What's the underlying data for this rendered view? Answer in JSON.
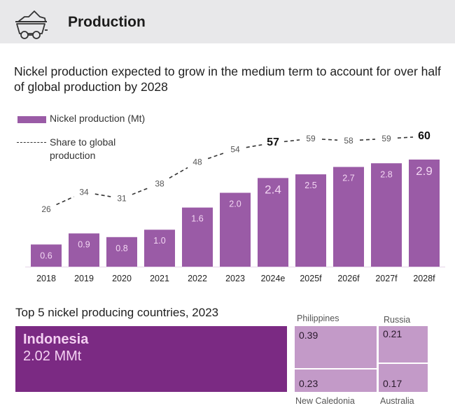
{
  "header": {
    "title": "Production",
    "icon": "mine-cart-icon"
  },
  "subtitle": "Nickel production expected to grow in the medium term to account for over half of global production by 2028",
  "chart_data": {
    "type": "bar",
    "title": "Nickel production expected to grow in the medium term to account for over half of global production by 2028",
    "categories": [
      "2018",
      "2019",
      "2020",
      "2021",
      "2022",
      "2023",
      "2024e",
      "2025f",
      "2026f",
      "2027f",
      "2028f"
    ],
    "series": [
      {
        "name": "Nickel production (Mt)",
        "type": "bar",
        "color": "#9a5ba6",
        "values": [
          0.6,
          0.9,
          0.8,
          1.0,
          1.6,
          2.0,
          2.4,
          2.5,
          2.7,
          2.8,
          2.9
        ]
      },
      {
        "name": "Share to global production",
        "type": "line",
        "style": "dashed",
        "color": "#333333",
        "values": [
          26,
          34,
          31,
          38,
          48,
          54,
          57,
          59,
          58,
          59,
          60
        ],
        "bold_labels": [
          "2024e",
          "2028f"
        ]
      }
    ],
    "legend": [
      {
        "label": "Nickel production (Mt)",
        "marker": "bar"
      },
      {
        "label": "Share to global production",
        "marker": "dashed-line"
      }
    ],
    "legend_position": "top-left",
    "xlabel": "",
    "ylabel": "",
    "ylim": [
      0,
      2.9
    ],
    "grid": false
  },
  "treemap": {
    "title": "Top 5 nickel producing countries, 2023",
    "unit": "MMt",
    "items": [
      {
        "name": "Indonesia",
        "value": 2.02,
        "display": "2.02 MMt"
      },
      {
        "name": "Philippines",
        "value": 0.39,
        "display": "0.39"
      },
      {
        "name": "New Caledonia",
        "value": 0.23,
        "display": "0.23"
      },
      {
        "name": "Russia",
        "value": 0.21,
        "display": "0.21"
      },
      {
        "name": "Australia",
        "value": 0.17,
        "display": "0.17"
      }
    ],
    "colors": {
      "primary": "#7b2a83",
      "secondary": "#c39ac8"
    }
  }
}
